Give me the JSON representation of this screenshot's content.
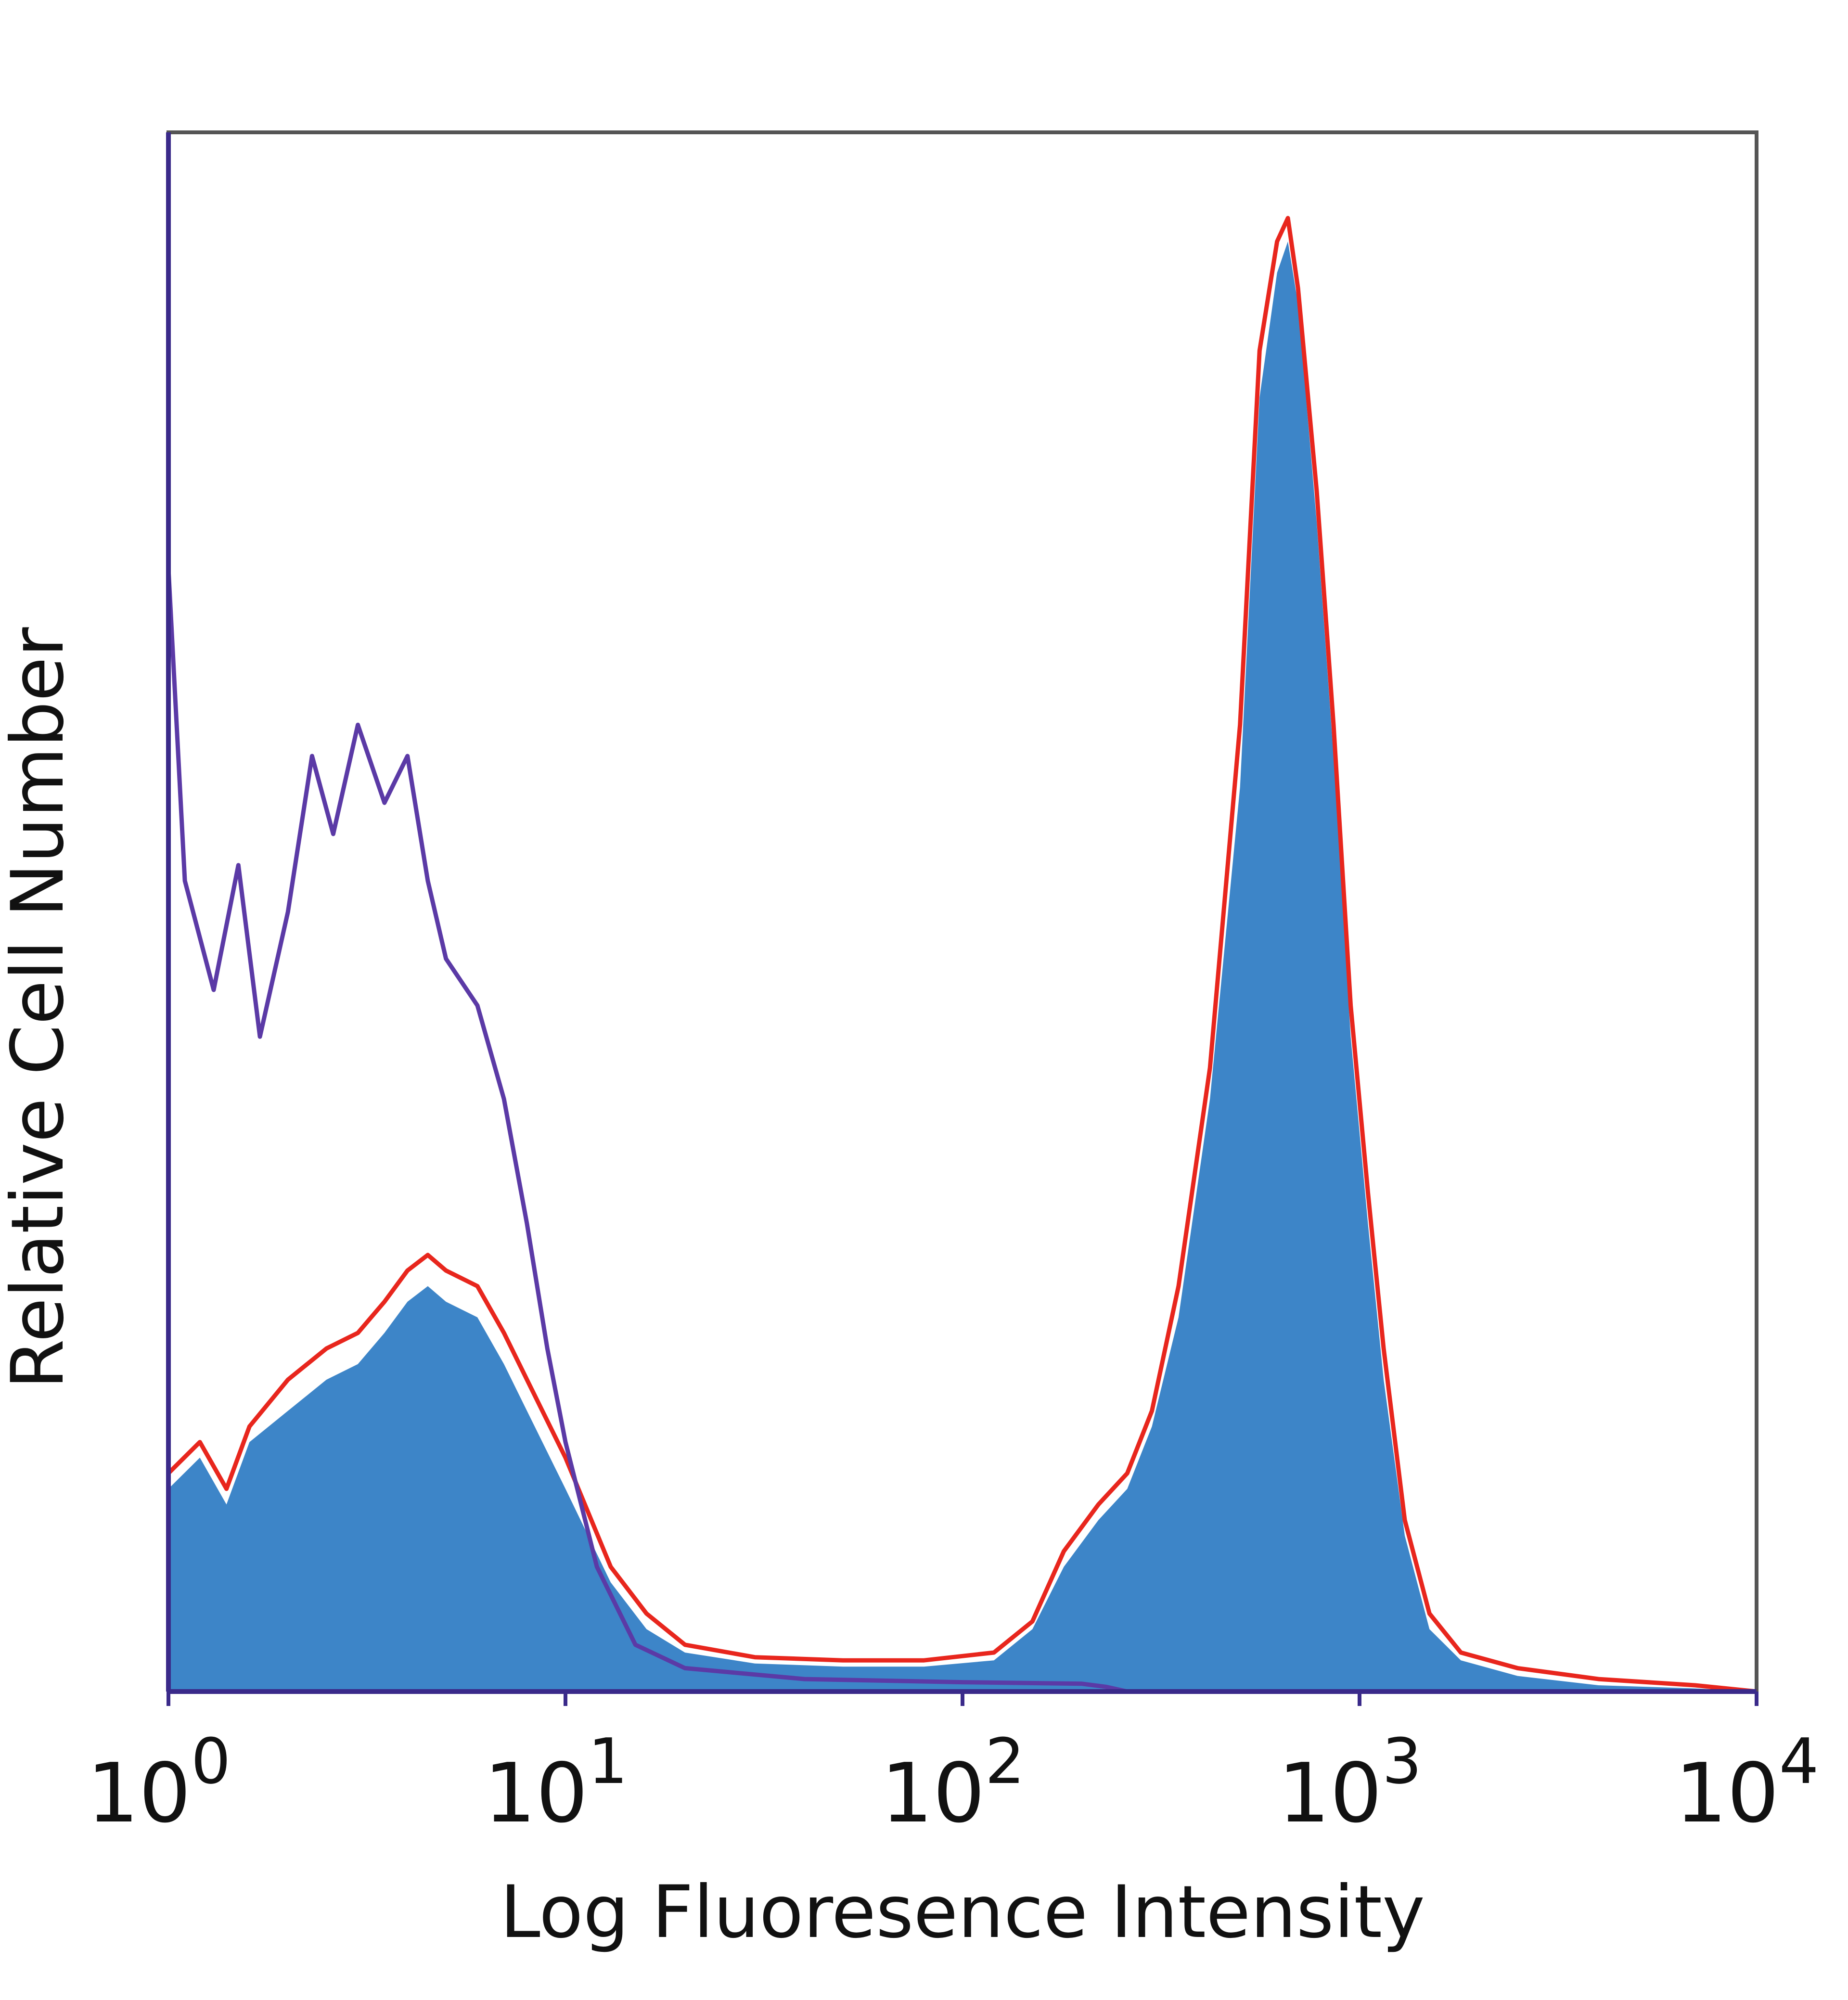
{
  "chart_data": {
    "type": "area",
    "title": "",
    "xlabel": "Log Fluoresence Intensity",
    "ylabel": "Relative Cell Number",
    "x_scale": "log",
    "xlim": [
      1,
      10000
    ],
    "ylim": [
      0,
      1
    ],
    "grid": false,
    "legend": "none",
    "x_ticks": [
      {
        "value": 1,
        "base": "10",
        "exp": "0"
      },
      {
        "value": 10,
        "base": "10",
        "exp": "1"
      },
      {
        "value": 100,
        "base": "10",
        "exp": "2"
      },
      {
        "value": 1000,
        "base": "10",
        "exp": "3"
      },
      {
        "value": 10000,
        "base": "10",
        "exp": "4"
      }
    ],
    "series": [
      {
        "style": "filled",
        "color": "#3d85c8",
        "points": [
          [
            1,
            0.13
          ],
          [
            1.2,
            0.15
          ],
          [
            1.4,
            0.12
          ],
          [
            1.6,
            0.16
          ],
          [
            2.0,
            0.18
          ],
          [
            2.5,
            0.2
          ],
          [
            3.0,
            0.21
          ],
          [
            3.5,
            0.23
          ],
          [
            4.0,
            0.25
          ],
          [
            4.5,
            0.26
          ],
          [
            5.0,
            0.25
          ],
          [
            6.0,
            0.24
          ],
          [
            7.0,
            0.21
          ],
          [
            8.0,
            0.18
          ],
          [
            10,
            0.13
          ],
          [
            13,
            0.07
          ],
          [
            16,
            0.04
          ],
          [
            20,
            0.025
          ],
          [
            30,
            0.018
          ],
          [
            50,
            0.016
          ],
          [
            80,
            0.016
          ],
          [
            120,
            0.02
          ],
          [
            150,
            0.04
          ],
          [
            180,
            0.08
          ],
          [
            220,
            0.11
          ],
          [
            260,
            0.13
          ],
          [
            300,
            0.17
          ],
          [
            350,
            0.24
          ],
          [
            420,
            0.38
          ],
          [
            500,
            0.58
          ],
          [
            560,
            0.83
          ],
          [
            620,
            0.91
          ],
          [
            660,
            0.93
          ],
          [
            700,
            0.89
          ],
          [
            780,
            0.75
          ],
          [
            860,
            0.6
          ],
          [
            950,
            0.42
          ],
          [
            1050,
            0.3
          ],
          [
            1150,
            0.2
          ],
          [
            1300,
            0.1
          ],
          [
            1500,
            0.04
          ],
          [
            1800,
            0.02
          ],
          [
            2500,
            0.01
          ],
          [
            4000,
            0.004
          ],
          [
            7000,
            0.002
          ],
          [
            10000,
            0
          ]
        ]
      },
      {
        "style": "line",
        "color": "#e8261d",
        "points": [
          [
            1,
            0.14
          ],
          [
            1.2,
            0.16
          ],
          [
            1.4,
            0.13
          ],
          [
            1.6,
            0.17
          ],
          [
            2.0,
            0.2
          ],
          [
            2.5,
            0.22
          ],
          [
            3.0,
            0.23
          ],
          [
            3.5,
            0.25
          ],
          [
            4.0,
            0.27
          ],
          [
            4.5,
            0.28
          ],
          [
            5.0,
            0.27
          ],
          [
            6.0,
            0.26
          ],
          [
            7.0,
            0.23
          ],
          [
            8.0,
            0.2
          ],
          [
            10,
            0.15
          ],
          [
            13,
            0.08
          ],
          [
            16,
            0.05
          ],
          [
            20,
            0.03
          ],
          [
            30,
            0.022
          ],
          [
            50,
            0.02
          ],
          [
            80,
            0.02
          ],
          [
            120,
            0.025
          ],
          [
            150,
            0.045
          ],
          [
            180,
            0.09
          ],
          [
            220,
            0.12
          ],
          [
            260,
            0.14
          ],
          [
            300,
            0.18
          ],
          [
            350,
            0.26
          ],
          [
            420,
            0.4
          ],
          [
            500,
            0.62
          ],
          [
            560,
            0.86
          ],
          [
            620,
            0.93
          ],
          [
            660,
            0.945
          ],
          [
            700,
            0.9
          ],
          [
            780,
            0.77
          ],
          [
            860,
            0.62
          ],
          [
            950,
            0.44
          ],
          [
            1050,
            0.32
          ],
          [
            1150,
            0.22
          ],
          [
            1300,
            0.11
          ],
          [
            1500,
            0.05
          ],
          [
            1800,
            0.025
          ],
          [
            2500,
            0.015
          ],
          [
            4000,
            0.008
          ],
          [
            7000,
            0.004
          ],
          [
            10000,
            0
          ]
        ]
      },
      {
        "style": "line",
        "color": "#5b3aa6",
        "points": [
          [
            1,
            0.72
          ],
          [
            1.1,
            0.52
          ],
          [
            1.3,
            0.45
          ],
          [
            1.5,
            0.53
          ],
          [
            1.7,
            0.42
          ],
          [
            2.0,
            0.5
          ],
          [
            2.3,
            0.6
          ],
          [
            2.6,
            0.55
          ],
          [
            3.0,
            0.62
          ],
          [
            3.5,
            0.57
          ],
          [
            4.0,
            0.6
          ],
          [
            4.5,
            0.52
          ],
          [
            5.0,
            0.47
          ],
          [
            6.0,
            0.44
          ],
          [
            7.0,
            0.38
          ],
          [
            8.0,
            0.3
          ],
          [
            9.0,
            0.22
          ],
          [
            10,
            0.16
          ],
          [
            12,
            0.08
          ],
          [
            15,
            0.03
          ],
          [
            20,
            0.015
          ],
          [
            40,
            0.008
          ],
          [
            100,
            0.006
          ],
          [
            200,
            0.005
          ],
          [
            230,
            0.003
          ],
          [
            260,
            0
          ]
        ]
      }
    ]
  }
}
